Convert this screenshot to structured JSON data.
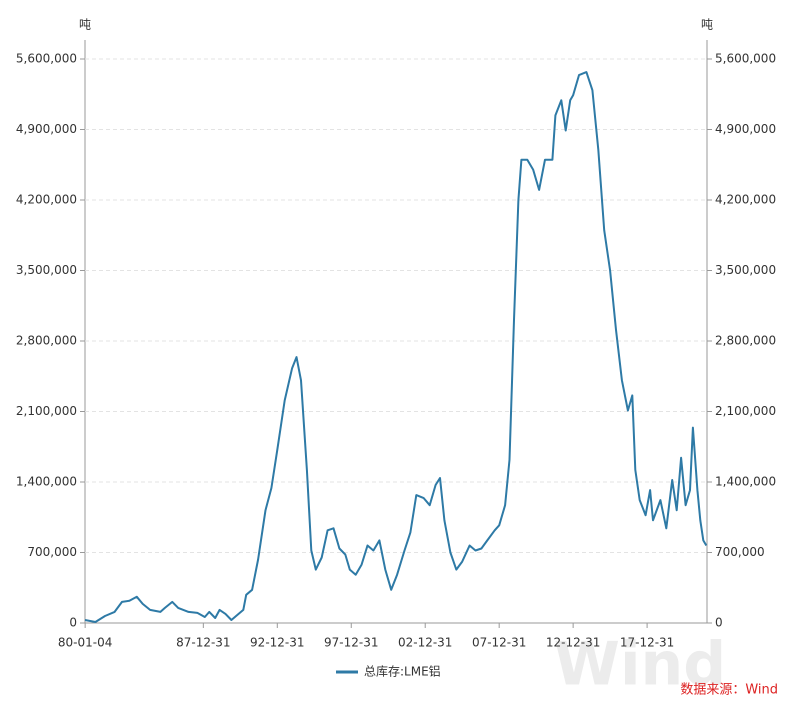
{
  "chart_data": {
    "type": "line",
    "y_unit": "吨",
    "y2_unit": "吨",
    "source": "数据来源：Wind",
    "watermark": "Wind",
    "x": [
      1980.0,
      1980.7,
      1981.35,
      1982.0,
      1982.5,
      1983.0,
      1983.5,
      1983.9,
      1984.4,
      1985.1,
      1985.4,
      1985.9,
      1986.3,
      1987.0,
      1987.6,
      1988.1,
      1988.4,
      1988.8,
      1989.1,
      1989.5,
      1989.9,
      1990.3,
      1990.7,
      1990.9,
      1991.3,
      1991.7,
      1992.2,
      1992.6,
      1993.0,
      1993.5,
      1994.0,
      1994.3,
      1994.6,
      1995.0,
      1995.3,
      1995.6,
      1996.0,
      1996.4,
      1996.8,
      1997.2,
      1997.6,
      1997.9,
      1998.3,
      1998.7,
      1999.1,
      1999.5,
      1999.9,
      2000.3,
      2000.7,
      2001.1,
      2001.6,
      2002.0,
      2002.4,
      2002.9,
      2003.3,
      2003.7,
      2004.0,
      2004.3,
      2004.7,
      2005.1,
      2005.5,
      2006.0,
      2006.4,
      2006.8,
      2007.2,
      2007.7,
      2008.0,
      2008.4,
      2008.7,
      2009.0,
      2009.3,
      2009.5,
      2009.9,
      2010.3,
      2010.7,
      2011.1,
      2011.6,
      2011.8,
      2012.2,
      2012.5,
      2012.8,
      2013.0,
      2013.4,
      2013.9,
      2014.3,
      2014.7,
      2015.1,
      2015.5,
      2015.9,
      2016.3,
      2016.7,
      2017.0,
      2017.2,
      2017.5,
      2017.9,
      2018.2,
      2018.4,
      2018.9,
      2019.3,
      2019.7,
      2020.0,
      2020.3,
      2020.6,
      2020.9,
      2021.1,
      2021.4,
      2021.6,
      2021.8,
      2022.0
    ],
    "series": [
      {
        "name": "总库存:LME铝",
        "color": "#2e7aa6",
        "values": [
          30000,
          10000,
          70000,
          110000,
          210000,
          220000,
          260000,
          190000,
          130000,
          110000,
          150000,
          210000,
          150000,
          110000,
          100000,
          60000,
          110000,
          50000,
          130000,
          90000,
          30000,
          80000,
          130000,
          280000,
          330000,
          630000,
          1120000,
          1340000,
          1720000,
          2210000,
          2530000,
          2640000,
          2410000,
          1520000,
          720000,
          530000,
          650000,
          920000,
          940000,
          740000,
          680000,
          530000,
          480000,
          580000,
          770000,
          720000,
          820000,
          530000,
          330000,
          480000,
          720000,
          900000,
          1270000,
          1240000,
          1170000,
          1370000,
          1440000,
          1020000,
          700000,
          530000,
          610000,
          770000,
          720000,
          740000,
          820000,
          920000,
          970000,
          1170000,
          1620000,
          3010000,
          4200000,
          4600000,
          4600000,
          4500000,
          4300000,
          4600000,
          4600000,
          5040000,
          5190000,
          4890000,
          5190000,
          5240000,
          5440000,
          5470000,
          5290000,
          4700000,
          3900000,
          3500000,
          2910000,
          2410000,
          2110000,
          2260000,
          1520000,
          1220000,
          1070000,
          1320000,
          1020000,
          1220000,
          940000,
          1420000,
          1120000,
          1640000,
          1170000,
          1320000,
          1940000,
          1320000,
          1020000,
          820000,
          770000
        ]
      }
    ],
    "xlim": [
      1980.0,
      2022.05
    ],
    "xticks": [
      {
        "value": 1980.01,
        "label": "80-01-04"
      },
      {
        "value": 1988.0,
        "label": "87-12-31"
      },
      {
        "value": 1993.0,
        "label": "92-12-31"
      },
      {
        "value": 1998.0,
        "label": "97-12-31"
      },
      {
        "value": 2003.0,
        "label": "02-12-31"
      },
      {
        "value": 2008.0,
        "label": "07-12-31"
      },
      {
        "value": 2013.0,
        "label": "12-12-31"
      },
      {
        "value": 2018.0,
        "label": "17-12-31"
      }
    ],
    "ylim": [
      0,
      5600000
    ],
    "yticks": [
      0,
      {
        "value": 700000,
        "label": "700,000"
      },
      {
        "value": 1400000,
        "label": "1,400,000"
      },
      {
        "value": 2100000,
        "label": "2,100,000"
      },
      {
        "value": 2800000,
        "label": "2,800,000"
      },
      {
        "value": 3500000,
        "label": "3,500,000"
      },
      {
        "value": 4200000,
        "label": "4,200,000"
      },
      {
        "value": 4900000,
        "label": "4,900,000"
      },
      {
        "value": 5600000,
        "label": "5,600,000"
      }
    ],
    "y2lim": [
      0,
      5600000
    ],
    "y2ticks": [
      0,
      {
        "value": 700000,
        "label": "700,000"
      },
      {
        "value": 1400000,
        "label": "1,400,000"
      },
      {
        "value": 2100000,
        "label": "2,100,000"
      },
      {
        "value": 2800000,
        "label": "2,800,000"
      },
      {
        "value": 3500000,
        "label": "3,500,000"
      },
      {
        "value": 4200000,
        "label": "4,200,000"
      },
      {
        "value": 4900000,
        "label": "4,900,000"
      },
      {
        "value": 5600000,
        "label": "5,600,000"
      }
    ],
    "grid": true
  }
}
